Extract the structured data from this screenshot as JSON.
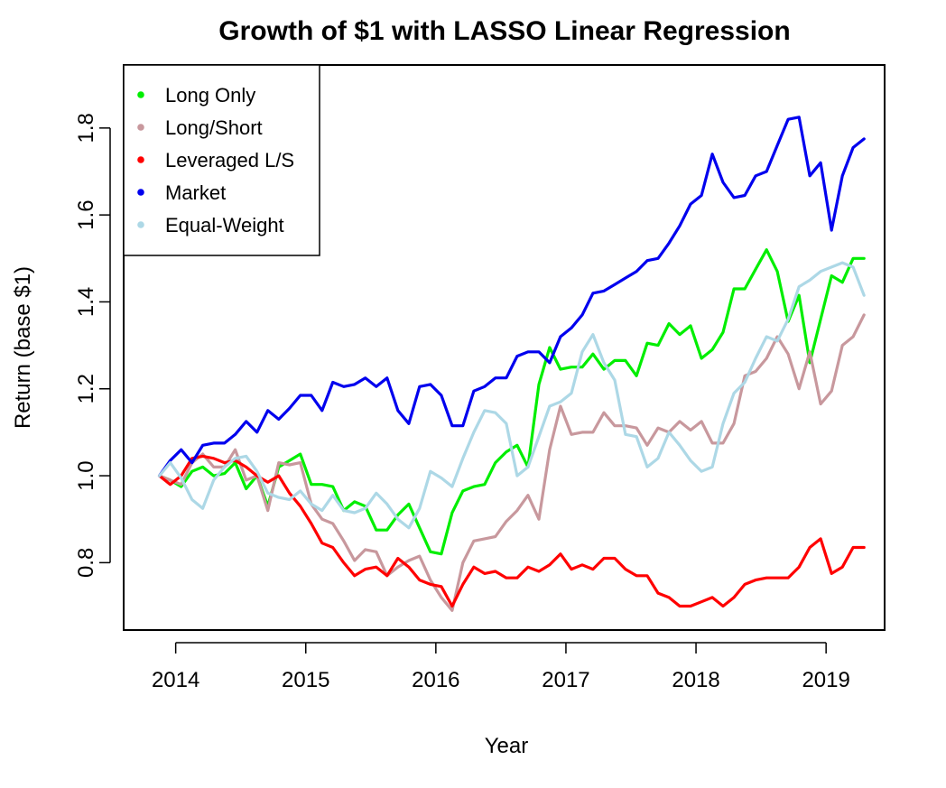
{
  "chart_data": {
    "type": "line",
    "title": "Growth of $1 with LASSO Linear Regression",
    "xlabel": "Year",
    "ylabel": "Return (base $1)",
    "xlim": [
      2013.6,
      2019.45
    ],
    "ylim": [
      0.645,
      1.945
    ],
    "x_ticks": [
      2014,
      2015,
      2016,
      2017,
      2018,
      2019
    ],
    "x_tick_labels": [
      "2014",
      "2015",
      "2016",
      "2017",
      "2018",
      "2019"
    ],
    "y_ticks": [
      0.8,
      1.0,
      1.2,
      1.4,
      1.6,
      1.8
    ],
    "y_tick_labels": [
      "0.8",
      "1.0",
      "1.2",
      "1.4",
      "1.6",
      "1.8"
    ],
    "grid": false,
    "legend": {
      "position": "top-left"
    },
    "x": [
      2013.875,
      2013.958,
      2014.042,
      2014.125,
      2014.208,
      2014.292,
      2014.375,
      2014.458,
      2014.542,
      2014.625,
      2014.708,
      2014.792,
      2014.875,
      2014.958,
      2015.042,
      2015.125,
      2015.208,
      2015.292,
      2015.375,
      2015.458,
      2015.542,
      2015.625,
      2015.708,
      2015.792,
      2015.875,
      2015.958,
      2016.042,
      2016.125,
      2016.208,
      2016.292,
      2016.375,
      2016.458,
      2016.542,
      2016.625,
      2016.708,
      2016.792,
      2016.875,
      2016.958,
      2017.042,
      2017.125,
      2017.208,
      2017.292,
      2017.375,
      2017.458,
      2017.542,
      2017.625,
      2017.708,
      2017.792,
      2017.875,
      2017.958,
      2018.042,
      2018.125,
      2018.208,
      2018.292,
      2018.375,
      2018.458,
      2018.542,
      2018.625,
      2018.708,
      2018.792,
      2018.875,
      2018.958,
      2019.042,
      2019.125,
      2019.208,
      2019.292
    ],
    "series": [
      {
        "name": "Long Only",
        "color": "#00ee00",
        "values": [
          1.0,
          0.99,
          0.975,
          1.01,
          1.02,
          1.0,
          1.005,
          1.03,
          0.97,
          1.0,
          0.93,
          1.02,
          1.035,
          1.05,
          0.98,
          0.98,
          0.975,
          0.92,
          0.94,
          0.93,
          0.875,
          0.875,
          0.91,
          0.935,
          0.88,
          0.825,
          0.82,
          0.915,
          0.965,
          0.975,
          0.98,
          1.03,
          1.055,
          1.07,
          1.02,
          1.21,
          1.295,
          1.245,
          1.25,
          1.25,
          1.28,
          1.245,
          1.265,
          1.265,
          1.23,
          1.305,
          1.3,
          1.35,
          1.325,
          1.345,
          1.27,
          1.29,
          1.33,
          1.43,
          1.43,
          1.475,
          1.52,
          1.47,
          1.355,
          1.415,
          1.26,
          1.36,
          1.46,
          1.445,
          1.5,
          1.5
        ]
      },
      {
        "name": "Long/Short",
        "color": "#c8989d",
        "values": [
          1.0,
          0.99,
          0.98,
          1.03,
          1.05,
          1.02,
          1.02,
          1.06,
          0.99,
          1.0,
          0.92,
          1.03,
          1.025,
          1.03,
          0.935,
          0.9,
          0.89,
          0.85,
          0.805,
          0.83,
          0.825,
          0.77,
          0.79,
          0.805,
          0.815,
          0.76,
          0.72,
          0.69,
          0.8,
          0.85,
          0.855,
          0.86,
          0.895,
          0.92,
          0.955,
          0.9,
          1.06,
          1.16,
          1.095,
          1.1,
          1.1,
          1.145,
          1.115,
          1.115,
          1.11,
          1.07,
          1.11,
          1.1,
          1.125,
          1.105,
          1.125,
          1.075,
          1.075,
          1.12,
          1.23,
          1.24,
          1.27,
          1.32,
          1.28,
          1.2,
          1.285,
          1.165,
          1.195,
          1.3,
          1.32,
          1.37
        ]
      },
      {
        "name": "Leveraged L/S",
        "color": "#ff0000",
        "values": [
          1.0,
          0.98,
          1.0,
          1.04,
          1.045,
          1.04,
          1.03,
          1.035,
          1.02,
          1.0,
          0.985,
          1.0,
          0.96,
          0.93,
          0.89,
          0.845,
          0.835,
          0.8,
          0.77,
          0.785,
          0.79,
          0.77,
          0.81,
          0.79,
          0.76,
          0.75,
          0.745,
          0.7,
          0.75,
          0.79,
          0.775,
          0.78,
          0.765,
          0.765,
          0.79,
          0.78,
          0.795,
          0.82,
          0.785,
          0.795,
          0.785,
          0.81,
          0.81,
          0.785,
          0.77,
          0.77,
          0.73,
          0.72,
          0.7,
          0.7,
          0.71,
          0.72,
          0.7,
          0.72,
          0.75,
          0.76,
          0.765,
          0.765,
          0.765,
          0.79,
          0.835,
          0.855,
          0.775,
          0.79,
          0.835,
          0.835
        ]
      },
      {
        "name": "Market",
        "color": "#0000ee",
        "values": [
          1.0,
          1.035,
          1.06,
          1.03,
          1.07,
          1.075,
          1.075,
          1.095,
          1.125,
          1.1,
          1.15,
          1.13,
          1.155,
          1.185,
          1.185,
          1.15,
          1.215,
          1.205,
          1.21,
          1.225,
          1.205,
          1.225,
          1.15,
          1.12,
          1.205,
          1.21,
          1.185,
          1.115,
          1.115,
          1.195,
          1.205,
          1.225,
          1.225,
          1.275,
          1.285,
          1.285,
          1.26,
          1.32,
          1.34,
          1.37,
          1.42,
          1.425,
          1.44,
          1.455,
          1.47,
          1.495,
          1.5,
          1.535,
          1.575,
          1.625,
          1.645,
          1.74,
          1.675,
          1.64,
          1.645,
          1.69,
          1.7,
          1.76,
          1.82,
          1.825,
          1.69,
          1.72,
          1.565,
          1.69,
          1.755,
          1.775
        ]
      },
      {
        "name": "Equal-Weight",
        "color": "#add8e6",
        "values": [
          1.0,
          1.03,
          0.995,
          0.945,
          0.925,
          0.99,
          1.02,
          1.04,
          1.045,
          1.01,
          0.96,
          0.95,
          0.945,
          0.965,
          0.935,
          0.92,
          0.955,
          0.92,
          0.915,
          0.925,
          0.96,
          0.935,
          0.9,
          0.88,
          0.925,
          1.01,
          0.995,
          0.975,
          1.04,
          1.1,
          1.15,
          1.145,
          1.12,
          1.0,
          1.02,
          1.09,
          1.16,
          1.17,
          1.19,
          1.285,
          1.325,
          1.26,
          1.22,
          1.095,
          1.09,
          1.02,
          1.04,
          1.1,
          1.07,
          1.035,
          1.01,
          1.02,
          1.12,
          1.19,
          1.215,
          1.27,
          1.32,
          1.31,
          1.36,
          1.435,
          1.45,
          1.47,
          1.48,
          1.49,
          1.48,
          1.415
        ]
      }
    ]
  }
}
